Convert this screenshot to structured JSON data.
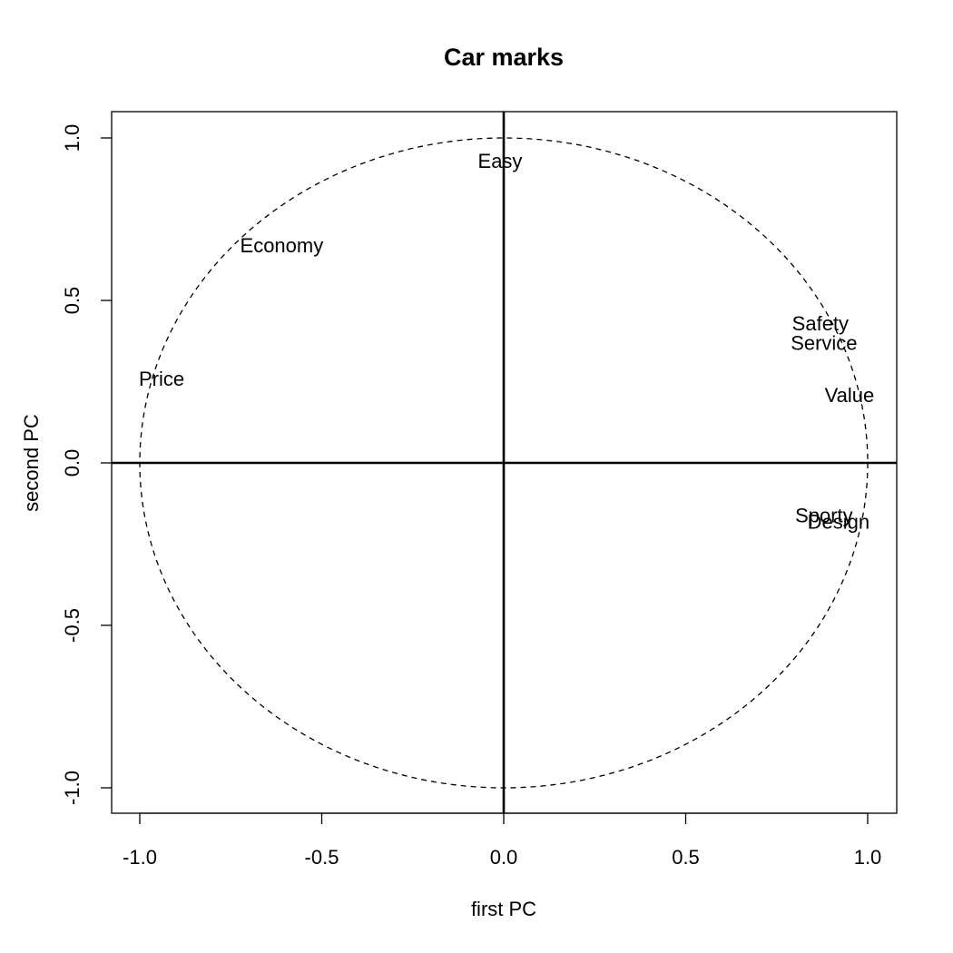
{
  "chart_data": {
    "type": "scatter",
    "title": "Car marks",
    "xlabel": "first PC",
    "ylabel": "second PC",
    "xlim": [
      -1.0,
      1.0
    ],
    "ylim": [
      -1.0,
      1.0
    ],
    "xticks": [
      -1.0,
      -0.5,
      0.0,
      0.5,
      1.0
    ],
    "yticks": [
      -1.0,
      -0.5,
      0.0,
      0.5,
      1.0
    ],
    "tick_labels": [
      "-1.0",
      "-0.5",
      "0.0",
      "0.5",
      "1.0"
    ],
    "unit_circle": true,
    "grid": false,
    "points": [
      {
        "label": "Easy",
        "x": -0.01,
        "y": 0.93
      },
      {
        "label": "Economy",
        "x": -0.61,
        "y": 0.67
      },
      {
        "label": "Price",
        "x": -0.94,
        "y": 0.26
      },
      {
        "label": "Safety",
        "x": 0.87,
        "y": 0.43
      },
      {
        "label": "Service",
        "x": 0.88,
        "y": 0.37
      },
      {
        "label": "Value",
        "x": 0.95,
        "y": 0.21
      },
      {
        "label": "Sporty",
        "x": 0.88,
        "y": -0.16
      },
      {
        "label": "Design",
        "x": 0.92,
        "y": -0.18
      }
    ]
  }
}
